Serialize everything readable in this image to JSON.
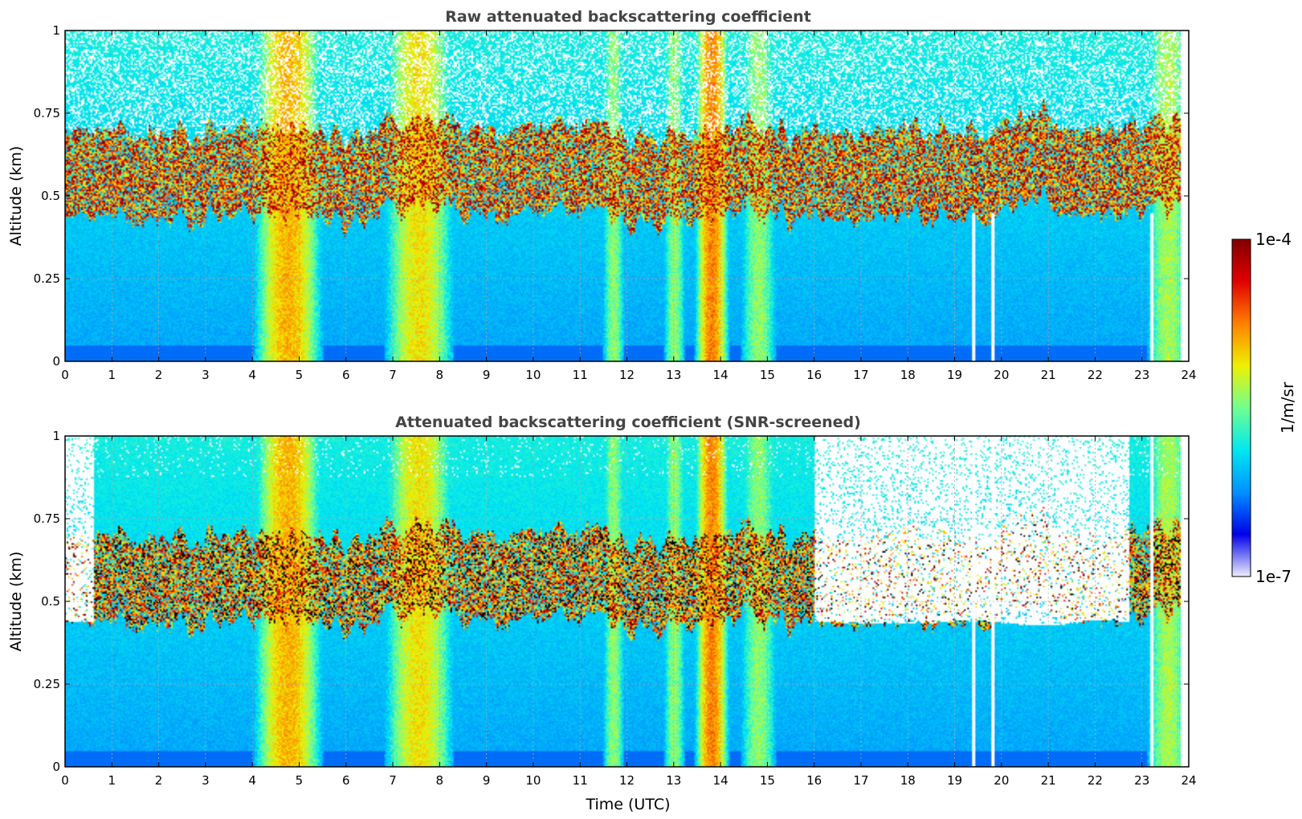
{
  "chart_data": [
    {
      "type": "heatmap",
      "title": "Raw attenuated backscattering coefficient",
      "xlabel": "",
      "ylabel": "Altitude (km)",
      "xlim": [
        0,
        24
      ],
      "ylim": [
        0,
        1
      ],
      "x_ticks": [
        "0",
        "1",
        "2",
        "3",
        "4",
        "5",
        "6",
        "7",
        "8",
        "9",
        "10",
        "11",
        "12",
        "13",
        "14",
        "15",
        "16",
        "17",
        "18",
        "19",
        "20",
        "21",
        "22",
        "23",
        "24"
      ],
      "y_ticks": [
        "0",
        "0.25",
        "0.5",
        "0.75",
        "1"
      ],
      "grid": true,
      "plumes": [
        {
          "start": 4.3,
          "end": 5.2,
          "intensity": 0.75
        },
        {
          "start": 7.1,
          "end": 8.0,
          "intensity": 0.65
        },
        {
          "start": 11.6,
          "end": 11.8,
          "intensity": 0.45
        },
        {
          "start": 12.9,
          "end": 13.1,
          "intensity": 0.45
        },
        {
          "start": 13.6,
          "end": 14.0,
          "intensity": 0.85
        },
        {
          "start": 14.6,
          "end": 15.0,
          "intensity": 0.45
        },
        {
          "start": 23.3,
          "end": 23.8,
          "intensity": 0.5
        }
      ]
    },
    {
      "type": "heatmap",
      "title": "Attenuated backscattering coefficient (SNR-screened)",
      "xlabel": "Time (UTC)",
      "ylabel": "Altitude (km)",
      "xlim": [
        0,
        24
      ],
      "ylim": [
        0,
        1
      ],
      "x_ticks": [
        "0",
        "1",
        "2",
        "3",
        "4",
        "5",
        "6",
        "7",
        "8",
        "9",
        "10",
        "11",
        "12",
        "13",
        "14",
        "15",
        "16",
        "17",
        "18",
        "19",
        "20",
        "21",
        "22",
        "23",
        "24"
      ],
      "y_ticks": [
        "0",
        "0.25",
        "0.5",
        "0.75",
        "1"
      ],
      "grid": true,
      "screened": true
    }
  ],
  "colorbar": {
    "label": "1/m/sr",
    "max_label": "1e-4",
    "min_label": "1e-7",
    "colors": [
      "#eeeeff",
      "#0000e8",
      "#0090ff",
      "#00e8f0",
      "#70ff90",
      "#f0f000",
      "#ff8000",
      "#e00000",
      "#800000"
    ]
  }
}
